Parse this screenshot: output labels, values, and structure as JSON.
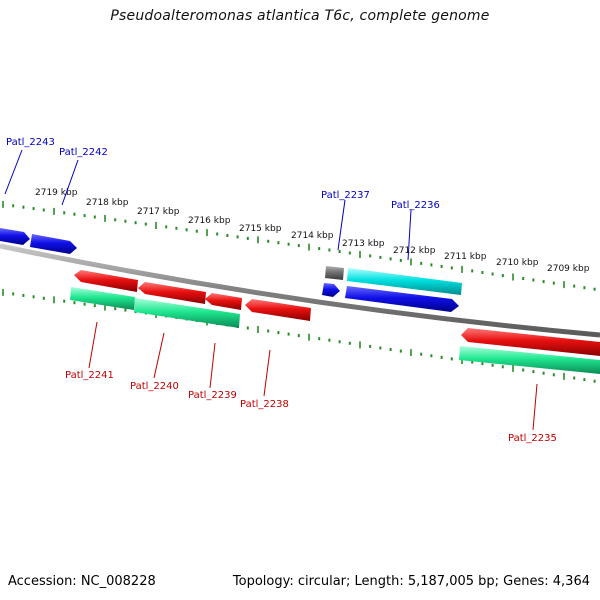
{
  "title": "Pseudoalteromonas atlantica T6c, complete genome",
  "footer": {
    "accession": "Accession: NC_008228",
    "topology": "Topology: circular; Length: 5,187,005 bp; Genes: 4,364"
  },
  "colors": {
    "backbone": "#808080",
    "forward_gene": "#1010e8",
    "reverse_gene": "#e81010",
    "forward_cds": "#00e0e0",
    "reverse_cds": "#20e890",
    "other_feature": "#707070",
    "forward_label": "#0000c0",
    "reverse_label": "#c00000",
    "dotted_scale": "#2a8a2a"
  },
  "scale_labels": [
    "2719 kbp",
    "2718 kbp",
    "2717 kbp",
    "2716 kbp",
    "2715 kbp",
    "2714 kbp",
    "2713 kbp",
    "2712 kbp",
    "2711 kbp",
    "2710 kbp",
    "2709 kbp"
  ],
  "forward_gene_labels": [
    "Patl_2243",
    "Patl_2242",
    "Patl_2237",
    "Patl_2236"
  ],
  "reverse_gene_labels": [
    "Patl_2241",
    "Patl_2240",
    "Patl_2239",
    "Patl_2238",
    "Patl_2235"
  ]
}
